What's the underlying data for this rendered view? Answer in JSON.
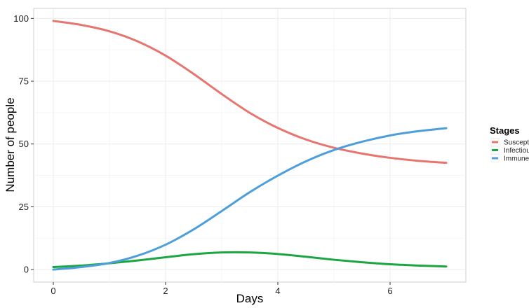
{
  "chart_data": {
    "type": "line",
    "xlabel": "Days",
    "ylabel": "Number of people",
    "xlim": [
      -0.35,
      7.35
    ],
    "ylim": [
      -5,
      104
    ],
    "x_ticks": [
      0,
      2,
      4,
      6
    ],
    "y_ticks": [
      0,
      25,
      50,
      75,
      100
    ],
    "grid": true,
    "legend": {
      "title": "Stages",
      "position": "right"
    },
    "series": [
      {
        "name": "Susceptible",
        "color": "#E8746F",
        "x": [
          0,
          0.5,
          1,
          1.5,
          2,
          2.5,
          3,
          3.5,
          4,
          4.5,
          5,
          5.5,
          6,
          6.5,
          7
        ],
        "values": [
          99,
          97.4,
          94.9,
          90.9,
          85.2,
          77.9,
          69.9,
          62.4,
          56.4,
          51.8,
          48.5,
          46.2,
          44.5,
          43.3,
          42.5
        ]
      },
      {
        "name": "Infectious",
        "color": "#1AA640",
        "x": [
          0,
          0.5,
          1,
          1.5,
          2,
          2.5,
          3,
          3.5,
          4,
          4.5,
          5,
          5.5,
          6,
          6.5,
          7
        ],
        "values": [
          1,
          1.6,
          2.5,
          3.6,
          4.9,
          6.1,
          6.8,
          6.8,
          6.2,
          5.1,
          3.9,
          2.9,
          2.1,
          1.6,
          1.2
        ]
      },
      {
        "name": "Immune",
        "color": "#4C9FDA",
        "x": [
          0,
          0.5,
          1,
          1.5,
          2,
          2.5,
          3,
          3.5,
          4,
          4.5,
          5,
          5.5,
          6,
          6.5,
          7
        ],
        "values": [
          0,
          1,
          2.6,
          5.5,
          9.9,
          16,
          23.3,
          30.8,
          37.4,
          43.1,
          47.6,
          50.9,
          53.4,
          55.1,
          56.3
        ]
      }
    ]
  }
}
